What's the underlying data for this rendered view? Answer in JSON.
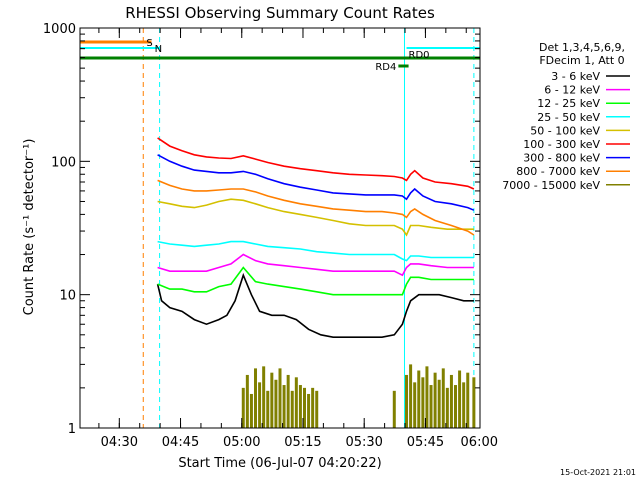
{
  "chart_data": {
    "type": "line",
    "title": "RHESSI Observing Summary Count Rates",
    "xlabel": "Start Time (06-Jul-07 04:20:22)",
    "ylabel": "Count Rate (s⁻¹ detector⁻¹)",
    "yscale": "log",
    "ylim": [
      1,
      1000
    ],
    "yticks": [
      1,
      10,
      100,
      1000
    ],
    "ytick_labels": [
      "1",
      "10",
      "100",
      "1000"
    ],
    "xlim_minutes": [
      0,
      98
    ],
    "x_unit": "minutes after 04:20:22",
    "xtick_labels": [
      "04:30",
      "04:45",
      "05:00",
      "05:15",
      "05:30",
      "05:45",
      "06:00"
    ],
    "xtick_minutes": [
      9.63,
      24.63,
      39.63,
      54.63,
      69.63,
      84.63,
      99.63
    ],
    "legend_header": [
      "Det 1,3,4,5,6,9,",
      "FDecim 1, Att 0"
    ],
    "legend_placement": "right",
    "footer": "15-Oct-2021 21:01",
    "state_bars": [
      {
        "label": "S",
        "color": "#ff7f00",
        "x_start_min": 0,
        "x_end_min": 17.5
      },
      {
        "label": "N",
        "color": "#00ffff",
        "x_start_min": 0,
        "x_end_min": 19.5
      },
      {
        "label": "N",
        "color": "#00ffff",
        "x_start_min": 80,
        "x_end_min": 98
      },
      {
        "label": "RD0",
        "color": "#008000",
        "x_start_min": 0,
        "x_end_min": 98
      },
      {
        "label": "RD4",
        "color": "#008000",
        "x_start_min": 78,
        "x_end_min": 80.5
      }
    ],
    "markers": [
      {
        "color": "#ff7f00",
        "style": "dashed",
        "x_min": 15.5
      },
      {
        "color": "#00ffff",
        "style": "dashed",
        "x_min": 19.5
      },
      {
        "color": "#00ffff",
        "style": "solid",
        "x_min": 0
      },
      {
        "color": "#00ffff",
        "style": "solid",
        "x_min": 79.5
      },
      {
        "color": "#00ffff",
        "style": "dashed",
        "x_min": 96.5
      }
    ],
    "series": [
      {
        "name": "3 - 6 keV",
        "color": "#000000",
        "x": [
          19,
          20,
          22,
          25,
          28,
          31,
          34,
          36,
          38,
          40,
          42,
          44,
          47,
          50,
          53,
          56,
          59,
          62,
          65,
          68,
          71,
          74,
          77,
          79,
          80,
          81,
          83,
          85,
          88,
          91,
          94,
          96.5
        ],
        "y": [
          12,
          9,
          8,
          7.5,
          6.5,
          6,
          6.5,
          7,
          9,
          14,
          10,
          7.5,
          7,
          7,
          6.5,
          5.5,
          5,
          4.8,
          4.8,
          4.8,
          4.8,
          4.8,
          5,
          6,
          7.5,
          9,
          10,
          10,
          10,
          9.5,
          9,
          9
        ]
      },
      {
        "name": "6 - 12 keV",
        "color": "#ff00ff",
        "x": [
          19,
          22,
          25,
          28,
          31,
          34,
          37,
          40,
          43,
          46,
          50,
          54,
          58,
          62,
          66,
          70,
          74,
          77,
          79,
          80,
          81,
          83,
          86,
          90,
          94,
          96.5
        ],
        "y": [
          16,
          15,
          15,
          15,
          15,
          16,
          17,
          20,
          18,
          17,
          16.5,
          16,
          15.5,
          15,
          15,
          15,
          15,
          15,
          14,
          16,
          17,
          17,
          16.5,
          16,
          16,
          16
        ]
      },
      {
        "name": "12 - 25 keV",
        "color": "#00ff00",
        "x": [
          19,
          22,
          25,
          28,
          31,
          34,
          37,
          40,
          43,
          46,
          50,
          54,
          58,
          62,
          66,
          70,
          74,
          77,
          79,
          80,
          81,
          83,
          86,
          90,
          94,
          96.5
        ],
        "y": [
          12,
          11,
          11,
          10.5,
          10.5,
          11.5,
          12,
          16,
          12.5,
          12,
          11.5,
          11,
          10.5,
          10,
          10,
          10,
          10,
          10,
          10,
          12,
          13.5,
          13.5,
          13,
          13,
          13,
          13
        ]
      },
      {
        "name": "25 - 50 keV",
        "color": "#00ffff",
        "x": [
          19,
          22,
          25,
          28,
          31,
          34,
          37,
          40,
          43,
          46,
          50,
          54,
          58,
          62,
          66,
          70,
          74,
          77,
          79,
          80,
          81,
          83,
          86,
          90,
          94,
          96.5
        ],
        "y": [
          25,
          24,
          23.5,
          23,
          23.5,
          24,
          25,
          25,
          24,
          23,
          22.5,
          22,
          21,
          20.5,
          20,
          20,
          20,
          20,
          18.5,
          18,
          19.5,
          19.5,
          19,
          19,
          19,
          19
        ]
      },
      {
        "name": "50 - 100 keV",
        "color": "#d4c000",
        "x": [
          19,
          22,
          25,
          28,
          31,
          34,
          37,
          40,
          43,
          46,
          50,
          54,
          58,
          62,
          66,
          70,
          74,
          77,
          79,
          80,
          81,
          83,
          86,
          90,
          94,
          96.5
        ],
        "y": [
          50,
          48,
          46,
          45,
          47,
          50,
          52,
          51,
          48,
          45,
          42,
          40,
          38,
          36,
          34,
          33,
          33,
          33,
          31,
          28,
          33,
          33,
          32,
          31,
          31,
          31
        ]
      },
      {
        "name": "100 - 300 keV",
        "color": "#ff0000",
        "x": [
          19,
          22,
          25,
          28,
          31,
          34,
          37,
          40,
          43,
          46,
          50,
          54,
          58,
          62,
          66,
          70,
          74,
          77,
          79,
          80,
          81,
          82,
          84,
          87,
          91,
          95,
          96.5
        ],
        "y": [
          150,
          130,
          120,
          112,
          108,
          106,
          105,
          110,
          104,
          98,
          92,
          88,
          85,
          82,
          80,
          79,
          78,
          77,
          75,
          72,
          80,
          85,
          75,
          70,
          68,
          65,
          62
        ]
      },
      {
        "name": "300 - 800 keV",
        "color": "#0000ff",
        "x": [
          19,
          22,
          25,
          28,
          31,
          34,
          37,
          40,
          43,
          46,
          50,
          54,
          58,
          62,
          66,
          70,
          74,
          77,
          79,
          80,
          81,
          82,
          84,
          87,
          91,
          95,
          96.5
        ],
        "y": [
          112,
          100,
          92,
          86,
          84,
          82,
          82,
          84,
          80,
          74,
          68,
          64,
          61,
          58,
          57,
          56,
          56,
          56,
          55,
          52,
          58,
          62,
          55,
          50,
          48,
          45,
          43
        ]
      },
      {
        "name": "800 - 7000 keV",
        "color": "#ff7f00",
        "x": [
          19,
          22,
          25,
          28,
          31,
          34,
          37,
          40,
          43,
          46,
          50,
          54,
          58,
          62,
          66,
          70,
          74,
          77,
          79,
          80,
          81,
          82,
          84,
          87,
          91,
          95,
          96.5
        ],
        "y": [
          72,
          66,
          62,
          60,
          60,
          61,
          62,
          62,
          59,
          55,
          51,
          48,
          46,
          44,
          43,
          42,
          42,
          41,
          40,
          38,
          42,
          44,
          40,
          36,
          33,
          30,
          28
        ]
      },
      {
        "name": "7000 - 15000 keV",
        "color": "#808000",
        "x": [
          40,
          41,
          42,
          43,
          44,
          45,
          46,
          47,
          48,
          49,
          50,
          51,
          52,
          53,
          54,
          55,
          56,
          57,
          58,
          77,
          80,
          81,
          82,
          83,
          84,
          85,
          86,
          87,
          88,
          89,
          90,
          91,
          92,
          93,
          94,
          95,
          96.5
        ],
        "y": [
          2,
          2.5,
          1.8,
          2.8,
          2.2,
          2.9,
          1.9,
          2.6,
          2.3,
          2.8,
          2.1,
          2.5,
          1.9,
          2.4,
          2.1,
          2,
          1.8,
          2,
          1.9,
          1.9,
          2.5,
          3,
          2.2,
          2.7,
          2.4,
          2.9,
          2.1,
          2.6,
          2.3,
          2.8,
          2,
          2.5,
          2.1,
          2.7,
          2.2,
          2.6,
          2.4
        ]
      }
    ]
  }
}
